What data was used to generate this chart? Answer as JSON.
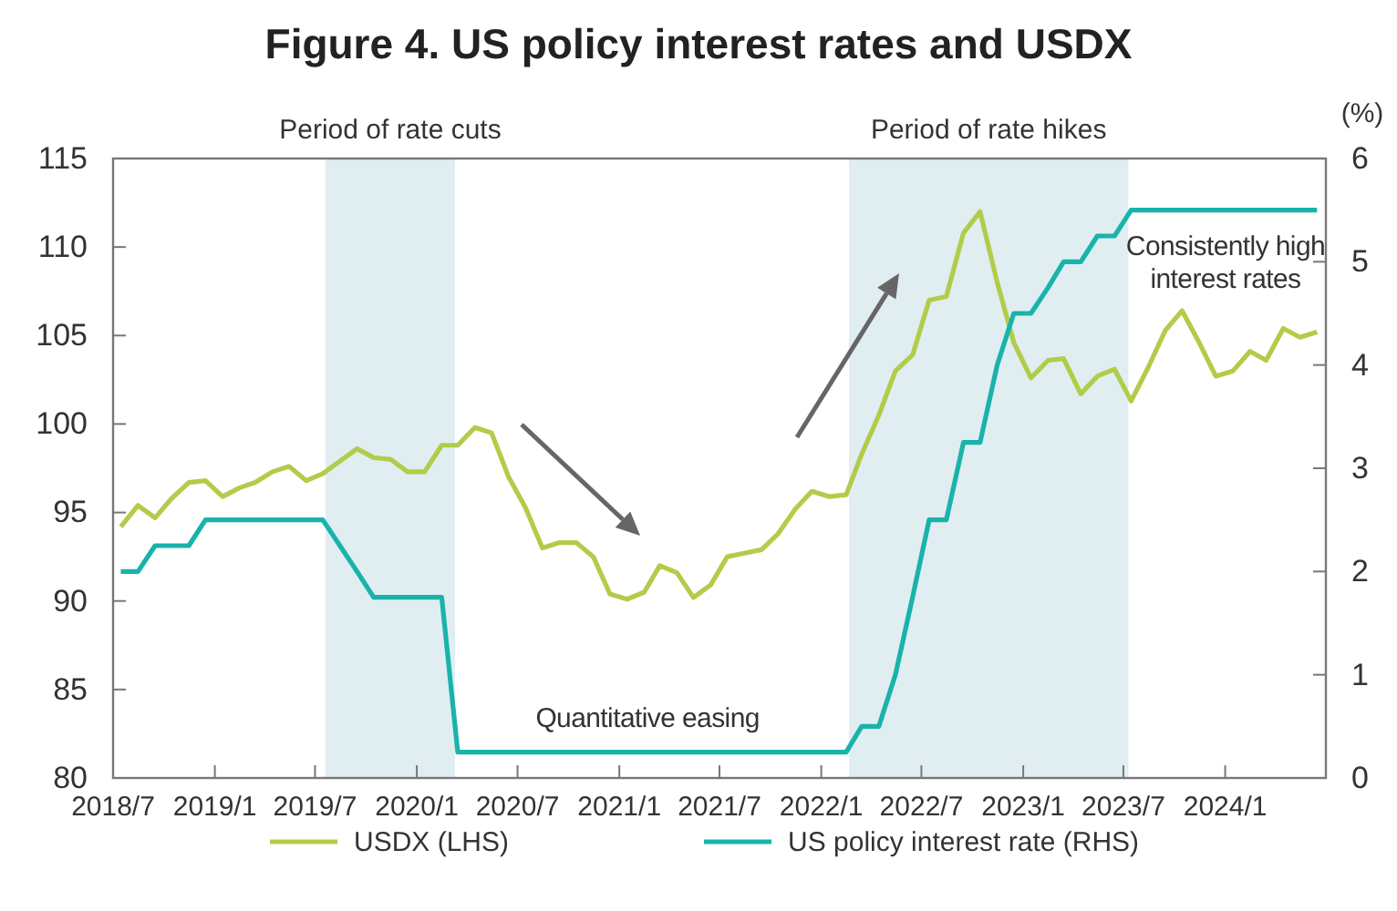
{
  "chart_data": {
    "type": "line",
    "title": "Figure 4. US policy interest rates and USDX",
    "y2label": "(%)",
    "x": [
      "2018-07-15",
      "2018-08-15",
      "2018-09-15",
      "2018-10-15",
      "2018-11-15",
      "2018-12-15",
      "2019-01-15",
      "2019-02-15",
      "2019-03-15",
      "2019-04-15",
      "2019-05-15",
      "2019-06-15",
      "2019-07-15",
      "2019-08-15",
      "2019-09-15",
      "2019-10-15",
      "2019-11-15",
      "2019-12-15",
      "2020-01-15",
      "2020-02-15",
      "2020-03-15",
      "2020-04-15",
      "2020-05-15",
      "2020-06-15",
      "2020-07-15",
      "2020-08-15",
      "2020-09-15",
      "2020-10-15",
      "2020-11-15",
      "2020-12-15",
      "2021-01-15",
      "2021-02-15",
      "2021-03-15",
      "2021-04-15",
      "2021-05-15",
      "2021-06-15",
      "2021-07-15",
      "2021-08-15",
      "2021-09-15",
      "2021-10-15",
      "2021-11-15",
      "2021-12-15",
      "2022-01-15",
      "2022-02-15",
      "2022-03-15",
      "2022-04-15",
      "2022-05-15",
      "2022-06-15",
      "2022-07-15",
      "2022-08-15",
      "2022-09-15",
      "2022-10-15",
      "2022-11-15",
      "2022-12-15",
      "2023-01-15",
      "2023-02-15",
      "2023-03-15",
      "2023-04-15",
      "2023-05-15",
      "2023-06-15",
      "2023-07-15",
      "2023-08-15",
      "2023-09-15",
      "2023-10-15",
      "2023-11-15",
      "2023-12-15",
      "2024-01-15",
      "2024-02-15",
      "2024-03-15",
      "2024-04-15",
      "2024-05-15",
      "2024-06-15"
    ],
    "series": [
      {
        "name": "USDX (LHS)",
        "color": "#b2cc4a",
        "values": [
          94.2,
          95.4,
          94.7,
          95.8,
          96.7,
          96.8,
          95.9,
          96.4,
          96.7,
          97.3,
          97.6,
          96.8,
          97.2,
          97.9,
          98.6,
          98.1,
          98.0,
          97.3,
          97.3,
          98.8,
          98.8,
          99.8,
          99.5,
          97.0,
          95.3,
          93.0,
          93.3,
          93.3,
          92.5,
          90.4,
          90.1,
          90.5,
          92.0,
          91.6,
          90.2,
          90.9,
          92.5,
          92.7,
          92.9,
          93.8,
          95.2,
          96.2,
          95.9,
          96.0,
          98.3,
          100.5,
          103.0,
          103.9,
          107.0,
          107.2,
          110.8,
          112.0,
          108.0,
          104.6,
          102.6,
          103.6,
          103.7,
          101.7,
          102.7,
          103.1,
          101.3,
          103.2,
          105.3,
          106.4,
          104.6,
          102.7,
          103.0,
          104.1,
          103.6,
          105.4,
          104.9,
          105.2
        ]
      },
      {
        "name": "US policy interest rate (RHS)",
        "color": "#19b3aa",
        "axis": "y2",
        "values": [
          2.0,
          2.0,
          2.25,
          2.25,
          2.25,
          2.5,
          2.5,
          2.5,
          2.5,
          2.5,
          2.5,
          2.5,
          2.5,
          2.25,
          2.0,
          1.75,
          1.75,
          1.75,
          1.75,
          1.75,
          0.25,
          0.25,
          0.25,
          0.25,
          0.25,
          0.25,
          0.25,
          0.25,
          0.25,
          0.25,
          0.25,
          0.25,
          0.25,
          0.25,
          0.25,
          0.25,
          0.25,
          0.25,
          0.25,
          0.25,
          0.25,
          0.25,
          0.25,
          0.25,
          0.5,
          0.5,
          1.0,
          1.75,
          2.5,
          2.5,
          3.25,
          3.25,
          4.0,
          4.5,
          4.5,
          4.75,
          5.0,
          5.0,
          5.25,
          5.25,
          5.5,
          5.5,
          5.5,
          5.5,
          5.5,
          5.5,
          5.5,
          5.5,
          5.5,
          5.5,
          5.5,
          5.5
        ]
      }
    ],
    "xlim": [
      "2018-07-01",
      "2024-07-01"
    ],
    "xticks": [
      {
        "value": "2018-07-01",
        "label": "2018/7"
      },
      {
        "value": "2019-01-01",
        "label": "2019/1"
      },
      {
        "value": "2019-07-01",
        "label": "2019/7"
      },
      {
        "value": "2020-01-01",
        "label": "2020/1"
      },
      {
        "value": "2020-07-01",
        "label": "2020/7"
      },
      {
        "value": "2021-01-01",
        "label": "2021/1"
      },
      {
        "value": "2021-07-01",
        "label": "2021/7"
      },
      {
        "value": "2022-01-01",
        "label": "2022/1"
      },
      {
        "value": "2022-07-01",
        "label": "2022/7"
      },
      {
        "value": "2023-01-01",
        "label": "2023/1"
      },
      {
        "value": "2023-07-01",
        "label": "2023/7"
      },
      {
        "value": "2024-01-01",
        "label": "2024/1"
      }
    ],
    "ylim": [
      80,
      115
    ],
    "yticks": [
      80,
      85,
      90,
      95,
      100,
      105,
      110,
      115
    ],
    "y2lim": [
      0,
      6
    ],
    "y2ticks": [
      0,
      1,
      2,
      3,
      4,
      5,
      6
    ],
    "bands": [
      {
        "axis": "x",
        "from": "2019-07-20",
        "to": "2020-03-10",
        "label": "Period of rate cuts",
        "color": "#e0eef2"
      },
      {
        "axis": "x",
        "from": "2022-02-20",
        "to": "2023-07-10",
        "label": "Period of rate hikes",
        "color": "#e0eef2"
      }
    ],
    "annotations": [
      "Quantitative easing",
      "Consistently high interest rates"
    ],
    "legend": "bottom",
    "grid": false,
    "marker": "none",
    "line_style": "solid"
  }
}
